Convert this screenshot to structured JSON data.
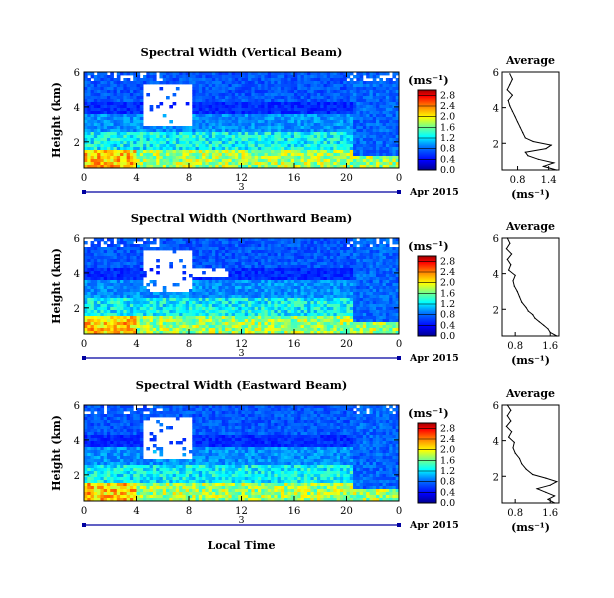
{
  "chart_data": [
    {
      "type": "heatmap",
      "title": "Spectral Width (Vertical Beam)",
      "ylabel": "Height (km)",
      "xlim": [
        0,
        24
      ],
      "ylim": [
        0.5,
        6
      ],
      "xticks": [
        "0",
        "4",
        "8",
        "12",
        "16",
        "20",
        "0"
      ],
      "yticks": [
        "2",
        "4",
        "6"
      ],
      "date_label": "Apr 2015",
      "day_label": "3",
      "colorbar": {
        "unit": "(ms⁻¹)",
        "ticks": [
          "0.0",
          "0.4",
          "0.8",
          "1.2",
          "1.6",
          "2.0",
          "2.4",
          "2.8"
        ],
        "range": [
          0,
          3.0
        ]
      },
      "profile": {
        "type": "line",
        "title": "Average",
        "xlabel": "(ms⁻¹)",
        "xticks": [
          "0.8",
          "1.4"
        ],
        "xlim": [
          0.5,
          1.6
        ],
        "yticks": [
          "2",
          "4",
          "6"
        ],
        "ylim": [
          0.5,
          6
        ],
        "points": [
          [
            1.55,
            0.5
          ],
          [
            1.3,
            0.7
          ],
          [
            1.5,
            0.9
          ],
          [
            1.2,
            1.1
          ],
          [
            1.0,
            1.3
          ],
          [
            0.95,
            1.5
          ],
          [
            1.35,
            1.7
          ],
          [
            1.45,
            1.9
          ],
          [
            1.1,
            2.1
          ],
          [
            0.95,
            2.3
          ],
          [
            0.9,
            2.6
          ],
          [
            0.85,
            2.9
          ],
          [
            0.8,
            3.2
          ],
          [
            0.75,
            3.5
          ],
          [
            0.7,
            3.8
          ],
          [
            0.65,
            4.1
          ],
          [
            0.62,
            4.4
          ],
          [
            0.7,
            4.7
          ],
          [
            0.6,
            5.0
          ],
          [
            0.65,
            5.3
          ],
          [
            0.7,
            5.6
          ],
          [
            0.65,
            5.9
          ]
        ]
      }
    },
    {
      "type": "heatmap",
      "title": "Spectral Width (Northward Beam)",
      "ylabel": "Height (km)",
      "xlim": [
        0,
        24
      ],
      "ylim": [
        0.5,
        6
      ],
      "xticks": [
        "0",
        "4",
        "8",
        "12",
        "16",
        "20",
        "0"
      ],
      "yticks": [
        "2",
        "4",
        "6"
      ],
      "date_label": "Apr 2015",
      "day_label": "3",
      "colorbar": {
        "unit": "(ms⁻¹)",
        "ticks": [
          "0.0",
          "0.4",
          "0.8",
          "1.2",
          "1.6",
          "2.0",
          "2.4",
          "2.8"
        ],
        "range": [
          0,
          3.0
        ]
      },
      "profile": {
        "type": "line",
        "title": "Average",
        "xlabel": "(ms⁻¹)",
        "xticks": [
          "0.8",
          "1.6"
        ],
        "xlim": [
          0.5,
          1.8
        ],
        "yticks": [
          "2",
          "4",
          "6"
        ],
        "ylim": [
          0.5,
          6
        ],
        "points": [
          [
            1.75,
            0.5
          ],
          [
            1.6,
            0.7
          ],
          [
            1.55,
            0.9
          ],
          [
            1.45,
            1.1
          ],
          [
            1.35,
            1.3
          ],
          [
            1.25,
            1.5
          ],
          [
            1.2,
            1.7
          ],
          [
            1.1,
            1.9
          ],
          [
            1.05,
            2.1
          ],
          [
            0.95,
            2.4
          ],
          [
            0.9,
            2.7
          ],
          [
            0.85,
            3.0
          ],
          [
            0.78,
            3.3
          ],
          [
            0.75,
            3.6
          ],
          [
            0.8,
            3.9
          ],
          [
            0.65,
            4.2
          ],
          [
            0.7,
            4.5
          ],
          [
            0.62,
            4.8
          ],
          [
            0.72,
            5.1
          ],
          [
            0.6,
            5.4
          ],
          [
            0.68,
            5.7
          ],
          [
            0.62,
            6.0
          ]
        ]
      }
    },
    {
      "type": "heatmap",
      "title": "Spectral Width (Eastward Beam)",
      "ylabel": "Height (km)",
      "xlabel": "Local Time",
      "xlim": [
        0,
        24
      ],
      "ylim": [
        0.5,
        6
      ],
      "xticks": [
        "0",
        "4",
        "8",
        "12",
        "16",
        "20",
        "0"
      ],
      "yticks": [
        "2",
        "4",
        "6"
      ],
      "date_label": "Apr 2015",
      "day_label": "3",
      "colorbar": {
        "unit": "(ms⁻¹)",
        "ticks": [
          "0.0",
          "0.4",
          "0.8",
          "1.2",
          "1.6",
          "2.0",
          "2.4",
          "2.8"
        ],
        "range": [
          0,
          3.0
        ]
      },
      "profile": {
        "type": "line",
        "title": "Average",
        "xlabel": "(ms⁻¹)",
        "xticks": [
          "0.8",
          "1.6"
        ],
        "xlim": [
          0.5,
          1.8
        ],
        "yticks": [
          "2",
          "4",
          "6"
        ],
        "ylim": [
          0.5,
          6
        ],
        "points": [
          [
            1.7,
            0.5
          ],
          [
            1.55,
            0.7
          ],
          [
            1.7,
            0.9
          ],
          [
            1.5,
            1.1
          ],
          [
            1.3,
            1.3
          ],
          [
            1.6,
            1.5
          ],
          [
            1.75,
            1.7
          ],
          [
            1.5,
            1.9
          ],
          [
            1.2,
            2.1
          ],
          [
            1.05,
            2.4
          ],
          [
            0.95,
            2.7
          ],
          [
            0.9,
            3.0
          ],
          [
            0.8,
            3.3
          ],
          [
            0.75,
            3.6
          ],
          [
            0.78,
            3.9
          ],
          [
            0.65,
            4.2
          ],
          [
            0.72,
            4.5
          ],
          [
            0.6,
            4.8
          ],
          [
            0.7,
            5.1
          ],
          [
            0.62,
            5.4
          ],
          [
            0.7,
            5.7
          ],
          [
            0.62,
            6.0
          ]
        ]
      }
    }
  ]
}
